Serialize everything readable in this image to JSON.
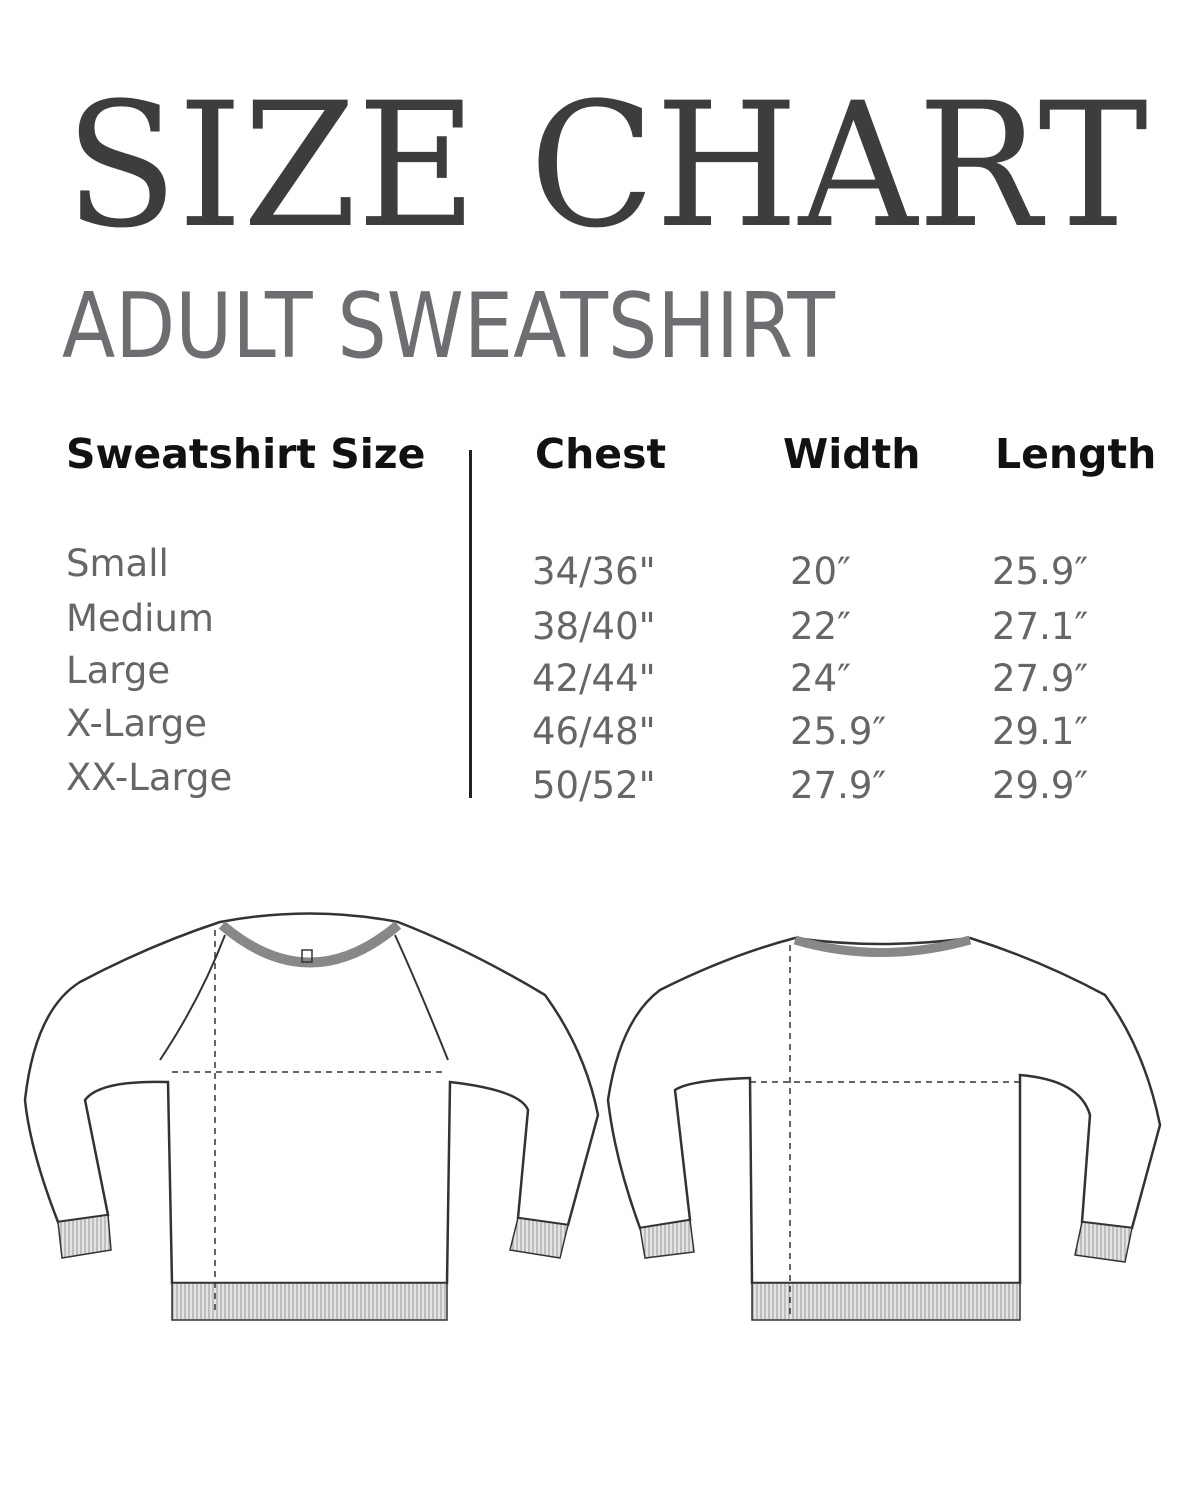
{
  "title": "SIZE CHART",
  "subtitle": "ADULT SWEATSHIRT",
  "colors": {
    "title": "#3d3d3d",
    "subtitle": "#6d6e71",
    "header": "#111111",
    "cell": "#666666",
    "rib": "#b8b8b8"
  },
  "table": {
    "headers": [
      "Sweatshirt Size",
      "Chest",
      "Width",
      "Length"
    ],
    "rows": [
      {
        "size": "Small",
        "chest": "34/36\"",
        "width": "20″",
        "length": "25.9″"
      },
      {
        "size": "Medium",
        "chest": "38/40\"",
        "width": "22″",
        "length": "27.1″"
      },
      {
        "size": "Large",
        "chest": "42/44\"",
        "width": "24″",
        "length": "27.9″"
      },
      {
        "size": "X-Large",
        "chest": "46/48\"",
        "width": "25.9″",
        "length": "29.1″"
      },
      {
        "size": "XX-Large",
        "chest": "50/52\"",
        "width": "27.9″",
        "length": "29.9″"
      }
    ]
  },
  "illustrations": [
    "sweatshirt-front",
    "sweatshirt-back"
  ]
}
